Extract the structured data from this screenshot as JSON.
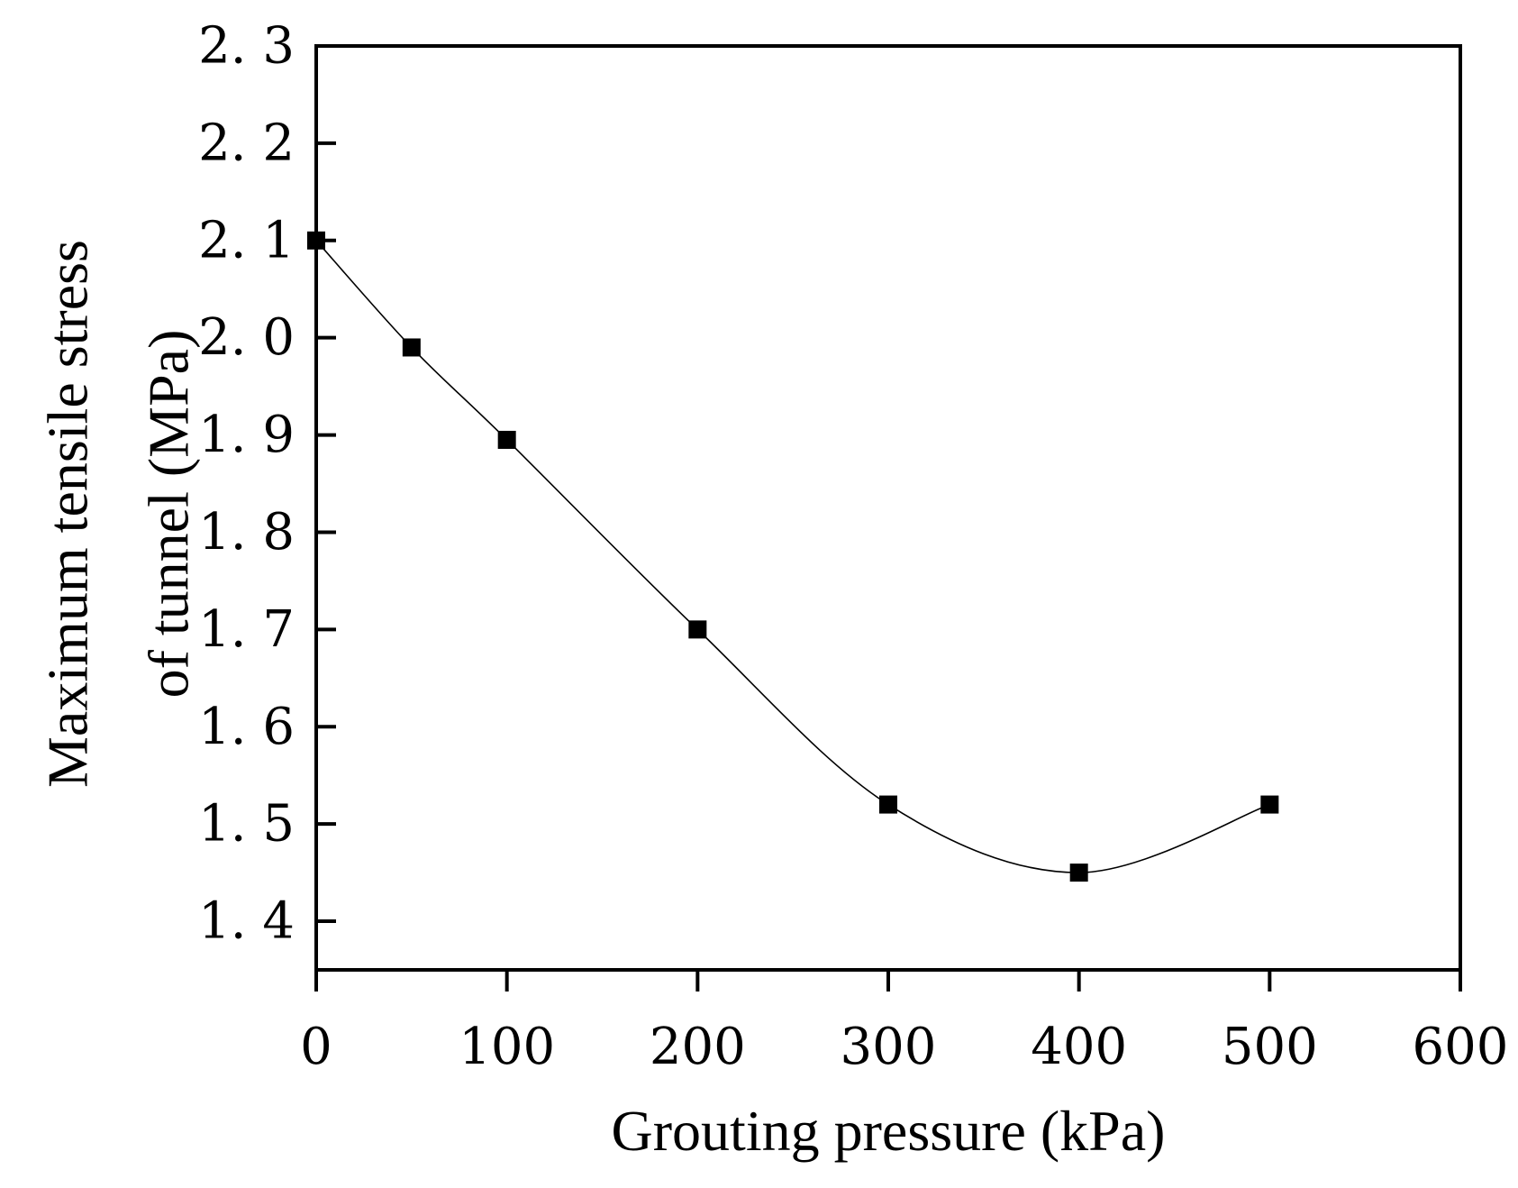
{
  "chart_data": {
    "type": "line",
    "title": "",
    "xlabel": "Grouting pressure (kPa)",
    "ylabel_line1": "Maximum tensile stress",
    "ylabel_line2": "of tunnel (MPa)",
    "xlim": [
      0,
      600
    ],
    "ylim": [
      1.35,
      2.3
    ],
    "x_ticks": [
      0,
      100,
      200,
      300,
      400,
      500,
      600
    ],
    "x_tick_labels": [
      "0",
      "100",
      "200",
      "300",
      "400",
      "500",
      "600"
    ],
    "y_ticks": [
      1.4,
      1.5,
      1.6,
      1.7,
      1.8,
      1.9,
      2.0,
      2.1,
      2.2,
      2.3
    ],
    "y_tick_labels": [
      "1. 4",
      "1. 5",
      "1. 6",
      "1. 7",
      "1. 8",
      "1. 9",
      "2. 0",
      "2. 1",
      "2. 2",
      "2. 3"
    ],
    "grid": false,
    "legend": "none",
    "series": [
      {
        "name": "Maximum tensile stress",
        "marker": "square",
        "color": "#000000",
        "x": [
          0,
          50,
          100,
          200,
          300,
          400,
          500
        ],
        "y": [
          2.1,
          1.99,
          1.895,
          1.7,
          1.52,
          1.45,
          1.52
        ]
      }
    ]
  }
}
